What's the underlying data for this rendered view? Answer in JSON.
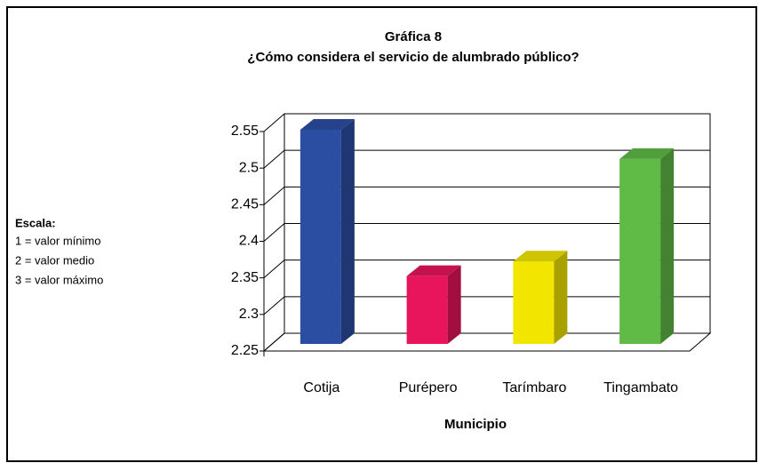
{
  "chart_data": {
    "type": "bar3d",
    "title": "Gráfica 8",
    "subtitle": "¿Cómo considera el servicio de alumbrado público?",
    "x_label": "Municipio",
    "annotations": [
      "Escala:",
      "1 = valor mínimo",
      "2 = valor medio",
      "3 = valor máximo"
    ],
    "categories": [
      "Cotija",
      "Purépero",
      "Tarímbaro",
      "Tingambato"
    ],
    "values": [
      2.55,
      2.35,
      2.37,
      2.51
    ],
    "colors": [
      "#2b4ea3",
      "#e8145c",
      "#f2e600",
      "#5fba46"
    ],
    "ylim": [
      2.25,
      2.55
    ],
    "yticks": [
      2.25,
      2.3,
      2.35,
      2.4,
      2.45,
      2.5,
      2.55
    ],
    "grid": true
  }
}
